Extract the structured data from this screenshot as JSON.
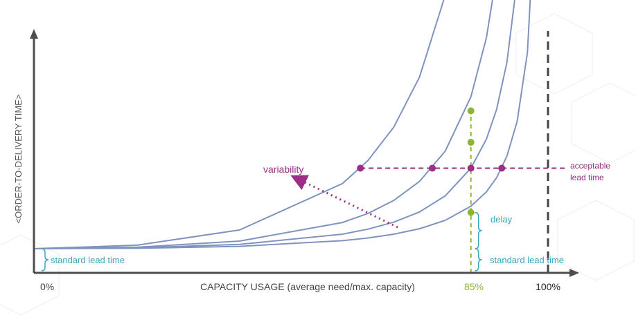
{
  "chart_data": {
    "type": "line",
    "title": "",
    "xlabel": "CAPACITY USAGE (average need/max. capacity)",
    "ylabel": "<ORDER-TO-DELIVERY TIME>",
    "x_ticks": [
      {
        "value": 0,
        "label": "0%"
      },
      {
        "value": 85,
        "label": "85%"
      },
      {
        "value": 100,
        "label": "100%"
      }
    ],
    "xlim": [
      0,
      100
    ],
    "ylim": [
      0,
      10
    ],
    "standard_lead_time": 1,
    "acceptable_lead_time": 4.33,
    "series": [
      {
        "asymptote": 96.8,
        "x": [
          0,
          20,
          40,
          60,
          65,
          70,
          75,
          80,
          85,
          88,
          90,
          92,
          94,
          95.4
        ]
      },
      {
        "asymptote": 98.2,
        "x": [
          0,
          20,
          40,
          60,
          65,
          70,
          75,
          80,
          85,
          88,
          90,
          92,
          94,
          96,
          97
        ]
      },
      {
        "asymptote": 99.2,
        "x": [
          0,
          20,
          40,
          60,
          65,
          70,
          75,
          80,
          85,
          88,
          90,
          92,
          94,
          96,
          97.5
        ]
      },
      {
        "asymptote": 100.2,
        "x": [
          0,
          20,
          40,
          60,
          65,
          70,
          75,
          80,
          85,
          88,
          90,
          92,
          94,
          96,
          98
        ]
      }
    ],
    "acceptable_points_x": [
      63.5,
      77.5,
      85,
      91
    ],
    "usage_85_points_y": [
      6.7,
      5.4,
      4.33,
      2.5
    ],
    "annotations": {
      "variability": "variability",
      "acceptable": [
        "acceptable",
        "lead time"
      ],
      "delay": "delay",
      "standard_lead_time": "standard lead time"
    },
    "colors": {
      "curve": "#7f93bf",
      "axis": "#4d4d4d",
      "purple": "#9c2f85",
      "green": "#8fb339",
      "teal": "#3aa6c2",
      "dashed_100": "#444444"
    }
  }
}
